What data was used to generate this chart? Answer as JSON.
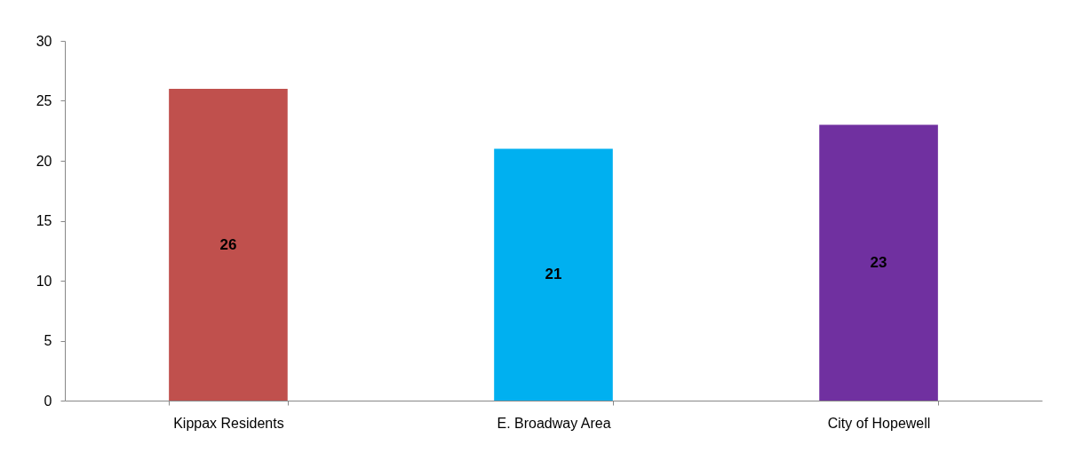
{
  "chart_data": {
    "type": "bar",
    "categories": [
      "Kippax Residents",
      "E. Broadway Area",
      "City of Hopewell"
    ],
    "values": [
      26,
      21,
      23
    ],
    "colors": [
      "#c0504d",
      "#00b0f0",
      "#7030a0"
    ],
    "ylim": [
      0,
      30
    ],
    "yticks": [
      0,
      5,
      10,
      15,
      20,
      25,
      30
    ],
    "grid": false,
    "data_labels": true
  }
}
